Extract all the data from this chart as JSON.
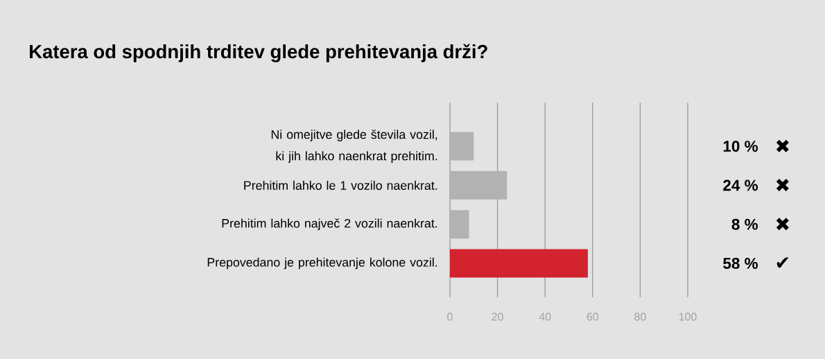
{
  "chart_data": {
    "type": "bar",
    "orientation": "horizontal",
    "title": "Katera od spodnjih trditev glede prehitevanja drži?",
    "categories": [
      "Ni omejitve glede števila vozil, ki jih lahko naenkrat prehitim.",
      "Prehitim lahko le 1 vozilo naenkrat.",
      "Prehitim lahko največ 2 vozili naenkrat.",
      "Prepovedano je prehitevanje kolone vozil."
    ],
    "values": [
      10,
      24,
      8,
      58
    ],
    "colors": [
      "#b2b2b2",
      "#b2b2b2",
      "#b2b2b2",
      "#d3232f"
    ],
    "value_labels": [
      "10 %",
      "24 %",
      "8 %",
      "58 %"
    ],
    "annotations": [
      "✖",
      "✖",
      "✖",
      "✔"
    ],
    "xlim": [
      0,
      100
    ],
    "xticks": [
      0,
      20,
      40,
      60,
      80,
      100
    ],
    "grid": "x"
  }
}
